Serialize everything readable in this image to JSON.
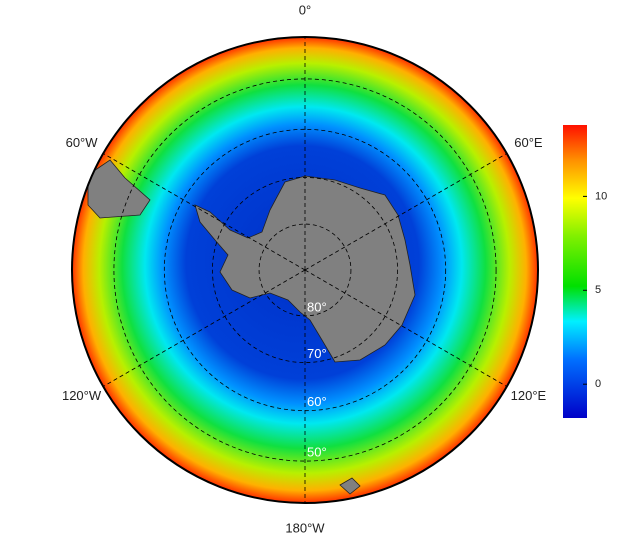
{
  "map": {
    "meridians": [
      {
        "value": 0,
        "label": "0°"
      },
      {
        "value": 60,
        "label": "60°E"
      },
      {
        "value": 120,
        "label": "120°E"
      },
      {
        "value": 180,
        "label": "180°W"
      },
      {
        "value": -120,
        "label": "120°W"
      },
      {
        "value": -60,
        "label": "60°W"
      }
    ],
    "parallels": [
      {
        "value": 80,
        "label": "80°"
      },
      {
        "value": 70,
        "label": "70°"
      },
      {
        "value": 60,
        "label": "60°"
      },
      {
        "value": 50,
        "label": "50°"
      }
    ],
    "colorbar": {
      "range": [
        -1.8,
        13.8
      ],
      "ticks": [
        0,
        5,
        10
      ]
    }
  }
}
